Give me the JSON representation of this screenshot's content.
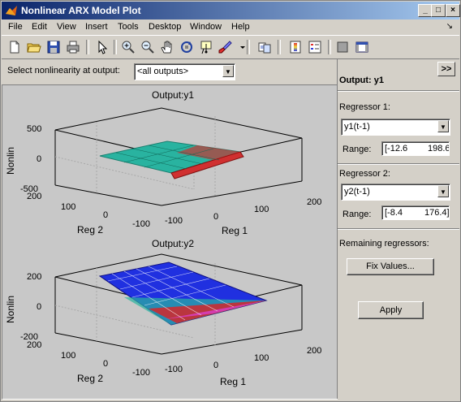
{
  "window": {
    "title": "Nonlinear ARX Model Plot",
    "controls": {
      "minimize": "_",
      "maximize": "□",
      "close": "×"
    }
  },
  "menubar": {
    "items": [
      "File",
      "Edit",
      "View",
      "Insert",
      "Tools",
      "Desktop",
      "Window",
      "Help"
    ],
    "dock_arrow": "↘"
  },
  "toolbar": {
    "icons": [
      "new-icon",
      "open-icon",
      "save-icon",
      "print-icon",
      "pointer-icon",
      "zoom-in-icon",
      "zoom-out-icon",
      "pan-icon",
      "rotate-icon",
      "data-cursor-icon",
      "brush-icon",
      "link-icon",
      "colorbar-icon",
      "legend-icon",
      "hide-plot-tools-icon",
      "show-plot-tools-icon"
    ]
  },
  "selector": {
    "label": "Select nonlinearity at output:",
    "value": "<all outputs>"
  },
  "plots": [
    {
      "title": "Output:y1",
      "zlabel": "Nonlin",
      "xlabel": "Reg 1",
      "ylabel": "Reg 2",
      "zticks": [
        "500",
        "0",
        "-500"
      ],
      "reg1_ticks": [
        "-100",
        "0",
        "100",
        "200"
      ],
      "reg2_ticks": [
        "200",
        "100",
        "0",
        "-100"
      ],
      "colors": {
        "main": "#29b3a0",
        "hot": "#e02020"
      }
    },
    {
      "title": "Output:y2",
      "zlabel": "Nonlin",
      "xlabel": "Reg 1",
      "ylabel": "Reg 2",
      "zticks": [
        "200",
        "0",
        "-200"
      ],
      "reg1_ticks": [
        "-100",
        "0",
        "100",
        "200"
      ],
      "reg2_ticks": [
        "200",
        "100",
        "0",
        "-100"
      ],
      "colors": {
        "main": "#2030e0",
        "hot": "#e02020"
      }
    }
  ],
  "panel": {
    "header": "Output: y1",
    "collapse_label": ">>",
    "reg1": {
      "label": "Regressor 1:",
      "value": "y1(t-1)",
      "range_label": "Range:",
      "range_min": "[-12.6",
      "range_max": "198.6"
    },
    "reg2": {
      "label": "Regressor 2:",
      "value": "y2(t-1)",
      "range_label": "Range:",
      "range_min": "[-8.4",
      "range_max": "176.4]"
    },
    "remaining_label": "Remaining regressors:",
    "fix_button": "Fix Values...",
    "apply_button": "Apply"
  }
}
